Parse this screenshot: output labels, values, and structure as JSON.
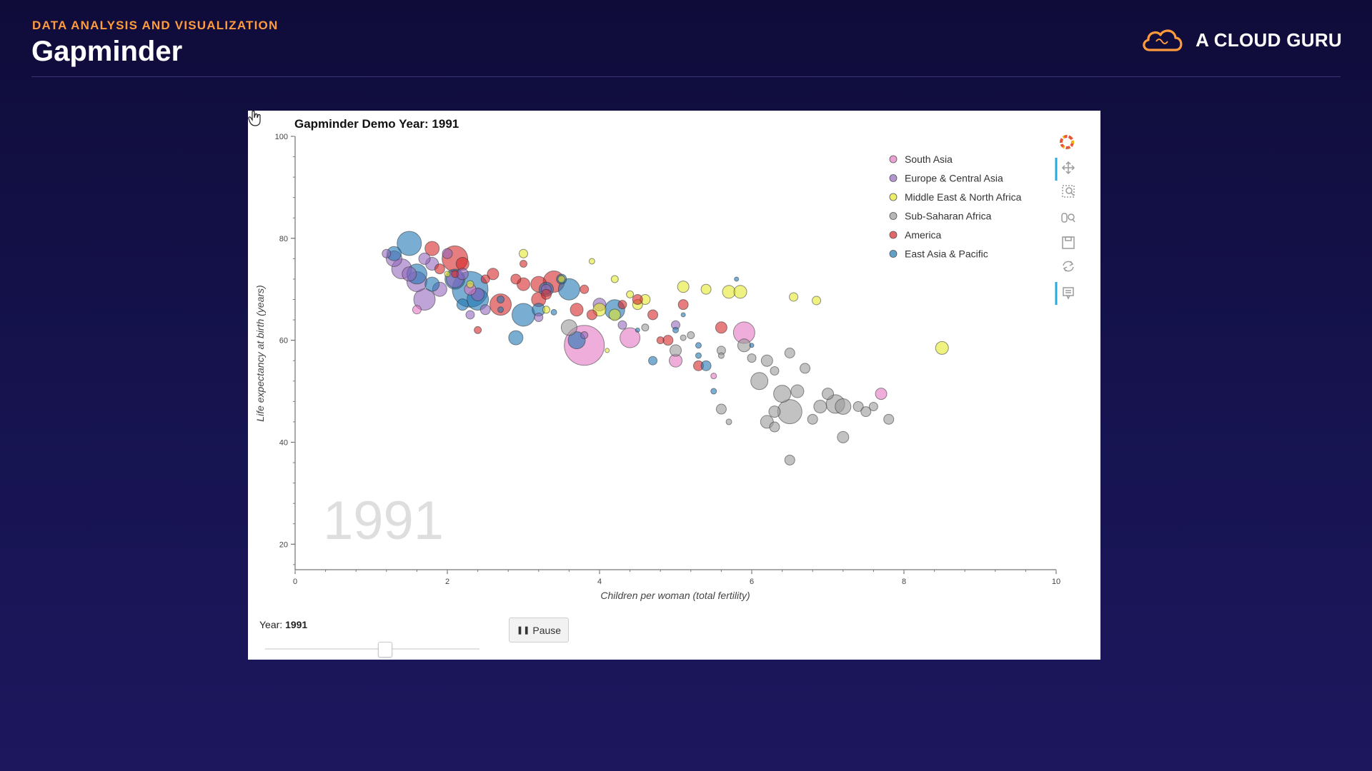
{
  "header": {
    "subtitle": "DATA ANALYSIS AND VISUALIZATION",
    "title": "Gapminder",
    "brand": "A CLOUD GURU"
  },
  "colors": {
    "accent_orange": "#ff9a3d",
    "background": "#171452"
  },
  "toolbar": {
    "icons": [
      "bokeh-logo-icon",
      "pan-icon",
      "box-zoom-icon",
      "wheel-zoom-icon",
      "save-icon",
      "reset-icon",
      "hover-icon"
    ]
  },
  "controls": {
    "year_label": "Year:",
    "year_value": "1991",
    "slider_fraction": 0.56,
    "pause_label": "Pause",
    "pause_icon": "pause-icon"
  },
  "chart_data": {
    "type": "scatter",
    "title": "Gapminder Demo  Year: 1991",
    "xlabel": "Children per woman (total fertility)",
    "ylabel": "Life expectancy at birth (years)",
    "xlim": [
      0,
      10
    ],
    "ylim": [
      15,
      100
    ],
    "x_ticks": [
      0,
      2,
      4,
      6,
      8,
      10
    ],
    "y_ticks": [
      20,
      40,
      60,
      80,
      100
    ],
    "watermark": "1991",
    "grid": false,
    "legend_position": "top-right",
    "series": [
      {
        "name": "South Asia",
        "color": "#e377c2",
        "points": [
          [
            3.8,
            59,
            28
          ],
          [
            4.4,
            60.5,
            14
          ],
          [
            5.9,
            61.5,
            15
          ],
          [
            5.0,
            56,
            9
          ],
          [
            7.7,
            49.5,
            8
          ],
          [
            2.3,
            70,
            8
          ],
          [
            1.6,
            66,
            6
          ],
          [
            5.5,
            53,
            4
          ]
        ]
      },
      {
        "name": "Europe & Central Asia",
        "color": "#9467bd",
        "points": [
          [
            1.3,
            76,
            11
          ],
          [
            1.4,
            74,
            14
          ],
          [
            1.6,
            71.5,
            14
          ],
          [
            1.7,
            68,
            15
          ],
          [
            1.8,
            75,
            9
          ],
          [
            1.5,
            73,
            10
          ],
          [
            1.9,
            70,
            10
          ],
          [
            2.1,
            72,
            12
          ],
          [
            2.2,
            73,
            8
          ],
          [
            2.5,
            66,
            7
          ],
          [
            2.3,
            65,
            6
          ],
          [
            1.7,
            76,
            8
          ],
          [
            2.0,
            77,
            7
          ],
          [
            3.3,
            70,
            7
          ],
          [
            3.2,
            64.5,
            6
          ],
          [
            3.8,
            61,
            5
          ],
          [
            5.0,
            63,
            6
          ],
          [
            1.2,
            77,
            6
          ],
          [
            2.4,
            69,
            9
          ],
          [
            4.0,
            67,
            9
          ],
          [
            4.3,
            63,
            6
          ]
        ]
      },
      {
        "name": "Middle East & North Africa",
        "color": "#e5e82b",
        "points": [
          [
            3.0,
            77,
            6
          ],
          [
            3.5,
            72,
            5
          ],
          [
            3.9,
            75.5,
            4
          ],
          [
            4.2,
            72,
            5
          ],
          [
            4.4,
            69,
            5
          ],
          [
            4.6,
            68,
            7
          ],
          [
            4.2,
            65,
            8
          ],
          [
            4.0,
            66,
            9
          ],
          [
            5.1,
            70.5,
            8
          ],
          [
            5.4,
            70,
            7
          ],
          [
            5.7,
            69.5,
            9
          ],
          [
            5.85,
            69.5,
            9
          ],
          [
            6.55,
            68.5,
            6
          ],
          [
            6.85,
            67.8,
            6
          ],
          [
            8.5,
            58.5,
            9
          ],
          [
            4.5,
            67,
            7
          ],
          [
            2.3,
            71,
            5
          ],
          [
            2.0,
            73,
            4
          ],
          [
            3.3,
            66,
            5
          ],
          [
            4.1,
            58,
            3
          ]
        ]
      },
      {
        "name": "Sub-Saharan Africa",
        "color": "#999999",
        "points": [
          [
            3.6,
            62.5,
            11
          ],
          [
            4.6,
            62.5,
            5
          ],
          [
            5.0,
            58,
            8
          ],
          [
            5.2,
            61,
            5
          ],
          [
            5.6,
            58,
            6
          ],
          [
            5.9,
            59,
            9
          ],
          [
            6.2,
            56,
            8
          ],
          [
            6.1,
            52,
            12
          ],
          [
            6.0,
            56.5,
            6
          ],
          [
            6.3,
            54,
            6
          ],
          [
            6.5,
            57.5,
            7
          ],
          [
            6.7,
            54.5,
            7
          ],
          [
            6.4,
            49.5,
            12
          ],
          [
            6.6,
            50,
            9
          ],
          [
            6.9,
            47,
            9
          ],
          [
            7.1,
            47.5,
            13
          ],
          [
            7.2,
            47,
            11
          ],
          [
            7.4,
            47,
            7
          ],
          [
            7.5,
            46,
            7
          ],
          [
            7.6,
            47,
            6
          ],
          [
            7.0,
            49.5,
            8
          ],
          [
            6.5,
            46,
            17
          ],
          [
            6.3,
            46,
            8
          ],
          [
            6.8,
            44.5,
            7
          ],
          [
            6.2,
            44,
            9
          ],
          [
            6.3,
            43,
            7
          ],
          [
            7.2,
            41,
            8
          ],
          [
            7.8,
            44.5,
            7
          ],
          [
            5.6,
            46.5,
            7
          ],
          [
            5.7,
            44,
            4
          ],
          [
            6.5,
            36.5,
            7
          ],
          [
            5.1,
            60.5,
            4
          ],
          [
            5.6,
            57,
            4
          ]
        ]
      },
      {
        "name": "America",
        "color": "#d62728",
        "points": [
          [
            1.8,
            78,
            10
          ],
          [
            2.2,
            75,
            9
          ],
          [
            2.1,
            76,
            18
          ],
          [
            2.6,
            73,
            8
          ],
          [
            2.9,
            72,
            7
          ],
          [
            3.0,
            71,
            9
          ],
          [
            3.2,
            71,
            11
          ],
          [
            3.4,
            71.5,
            15
          ],
          [
            3.2,
            68,
            10
          ],
          [
            3.7,
            66,
            9
          ],
          [
            3.9,
            65,
            7
          ],
          [
            4.3,
            67,
            6
          ],
          [
            4.5,
            68,
            7
          ],
          [
            4.7,
            65,
            7
          ],
          [
            4.9,
            60,
            7
          ],
          [
            5.1,
            67,
            7
          ],
          [
            5.3,
            55,
            7
          ],
          [
            5.6,
            62.5,
            8
          ],
          [
            2.5,
            72,
            6
          ],
          [
            2.7,
            67,
            15
          ],
          [
            3.8,
            70,
            6
          ],
          [
            2.4,
            62,
            5
          ],
          [
            3.0,
            75,
            5
          ],
          [
            1.9,
            74,
            7
          ],
          [
            2.1,
            73,
            5
          ],
          [
            3.3,
            69,
            7
          ],
          [
            4.8,
            60,
            5
          ]
        ]
      },
      {
        "name": "East Asia & Pacific",
        "color": "#1f77b4",
        "points": [
          [
            1.5,
            79,
            17
          ],
          [
            1.3,
            77,
            10
          ],
          [
            1.6,
            73,
            14
          ],
          [
            1.8,
            71,
            10
          ],
          [
            2.1,
            72,
            14
          ],
          [
            2.3,
            70,
            25
          ],
          [
            2.4,
            68,
            15
          ],
          [
            2.2,
            67,
            8
          ],
          [
            3.0,
            65,
            16
          ],
          [
            3.3,
            70,
            10
          ],
          [
            3.6,
            70,
            15
          ],
          [
            3.5,
            72,
            7
          ],
          [
            3.2,
            66,
            9
          ],
          [
            2.9,
            60.5,
            10
          ],
          [
            3.7,
            60,
            12
          ],
          [
            4.2,
            66,
            14
          ],
          [
            4.7,
            56,
            6
          ],
          [
            5.4,
            55,
            7
          ],
          [
            5.5,
            50,
            4
          ],
          [
            5.8,
            72,
            3
          ],
          [
            5.1,
            65,
            3
          ],
          [
            3.4,
            65.5,
            4
          ],
          [
            2.7,
            66,
            4
          ],
          [
            2.7,
            68,
            5
          ],
          [
            5.0,
            62,
            4
          ],
          [
            4.5,
            62,
            3
          ],
          [
            5.3,
            57,
            4
          ],
          [
            5.3,
            59,
            4
          ],
          [
            6.0,
            59,
            3
          ]
        ]
      }
    ]
  }
}
